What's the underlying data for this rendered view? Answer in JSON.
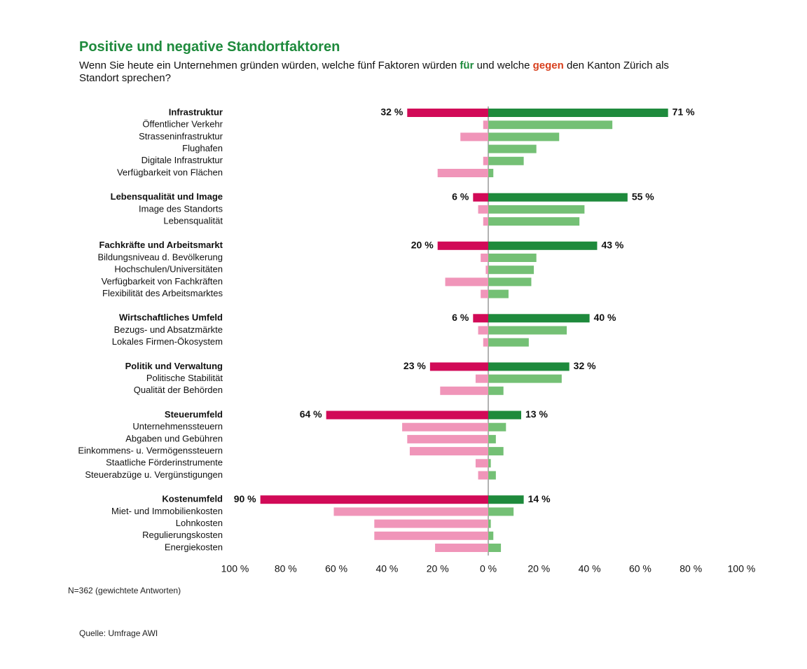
{
  "chart_data": {
    "type": "diverging_bar",
    "title": "Positive und negative Standortfaktoren",
    "subtitle": [
      "Wenn Sie heute ein Unternehmen gründen würden, welche fünf Faktoren würden ",
      "für",
      " und welche ",
      "gegen",
      " den Kanton Zürich als",
      "Standort sprechen?"
    ],
    "subtitle_colors": [
      "#111111",
      "#1e8a3c",
      "#111111",
      "#d8401e",
      "#111111",
      "#111111"
    ],
    "colors": {
      "against_group": "#d10a57",
      "against_item": "#f095b9",
      "for_group": "#1e8a3c",
      "for_item": "#74c075"
    },
    "xlim": [
      -100,
      100
    ],
    "xticks": [
      {
        "value": -100,
        "label": "100 %"
      },
      {
        "value": -80,
        "label": "80 %"
      },
      {
        "value": -60,
        "label": "60 %"
      },
      {
        "value": -40,
        "label": "40 %"
      },
      {
        "value": -20,
        "label": "20 %"
      },
      {
        "value": 0,
        "label": "0 %"
      },
      {
        "value": 20,
        "label": "20 %"
      },
      {
        "value": 40,
        "label": "40 %"
      },
      {
        "value": 60,
        "label": "60 %"
      },
      {
        "value": 80,
        "label": "80 %"
      },
      {
        "value": 100,
        "label": "100 %"
      }
    ],
    "groups": [
      {
        "label": "Infrastruktur",
        "against": 32,
        "for": 71,
        "against_label": "32 %",
        "for_label": "71 %",
        "items": [
          {
            "label": "Öffentlicher Verkehr",
            "against": 2,
            "for": 49
          },
          {
            "label": "Strasseninfrastruktur",
            "against": 11,
            "for": 28
          },
          {
            "label": "Flughafen",
            "against": 0,
            "for": 19
          },
          {
            "label": "Digitale Infrastruktur",
            "against": 2,
            "for": 14
          },
          {
            "label": "Verfügbarkeit von Flächen",
            "against": 20,
            "for": 2
          }
        ]
      },
      {
        "label": "Lebensqualität und Image",
        "against": 6,
        "for": 55,
        "against_label": "6 %",
        "for_label": "55 %",
        "items": [
          {
            "label": "Image des Standorts",
            "against": 4,
            "for": 38
          },
          {
            "label": "Lebensqualität",
            "against": 2,
            "for": 36
          }
        ]
      },
      {
        "label": "Fachkräfte und Arbeitsmarkt",
        "against": 20,
        "for": 43,
        "against_label": "20 %",
        "for_label": "43 %",
        "items": [
          {
            "label": "Bildungsniveau d. Bevölkerung",
            "against": 3,
            "for": 19
          },
          {
            "label": "Hochschulen/Universitäten",
            "against": 1,
            "for": 18
          },
          {
            "label": "Verfügbarkeit von Fachkräften",
            "against": 17,
            "for": 17
          },
          {
            "label": "Flexibilität des Arbeitsmarktes",
            "against": 3,
            "for": 8
          }
        ]
      },
      {
        "label": "Wirtschaftliches Umfeld",
        "against": 6,
        "for": 40,
        "against_label": "6 %",
        "for_label": "40 %",
        "items": [
          {
            "label": "Bezugs- und Absatzmärkte",
            "against": 4,
            "for": 31
          },
          {
            "label": "Lokales Firmen-Ökosystem",
            "against": 2,
            "for": 16
          }
        ]
      },
      {
        "label": "Politik und Verwaltung",
        "against": 23,
        "for": 32,
        "against_label": "23 %",
        "for_label": "32 %",
        "items": [
          {
            "label": "Politische Stabilität",
            "against": 5,
            "for": 29
          },
          {
            "label": "Qualität der Behörden",
            "against": 19,
            "for": 6
          }
        ]
      },
      {
        "label": "Steuerumfeld",
        "against": 64,
        "for": 13,
        "against_label": "64 %",
        "for_label": "13 %",
        "items": [
          {
            "label": "Unternehmenssteuern",
            "against": 34,
            "for": 7
          },
          {
            "label": "Abgaben und Gebühren",
            "against": 32,
            "for": 3
          },
          {
            "label": "Einkommens- u. Vermögenssteuern",
            "against": 31,
            "for": 6
          },
          {
            "label": "Staatliche Förderinstrumente",
            "against": 5,
            "for": 1
          },
          {
            "label": "Steuerabzüge u. Vergünstigungen",
            "against": 4,
            "for": 3
          }
        ]
      },
      {
        "label": "Kostenumfeld",
        "against": 90,
        "for": 14,
        "against_label": "90 %",
        "for_label": "14 %",
        "items": [
          {
            "label": "Miet- und Immobilienkosten",
            "against": 61,
            "for": 10
          },
          {
            "label": "Lohnkosten",
            "against": 45,
            "for": 1
          },
          {
            "label": "Regulierungskosten",
            "against": 45,
            "for": 2
          },
          {
            "label": "Energiekosten",
            "against": 21,
            "for": 5
          }
        ]
      }
    ],
    "note": "N=362 (gewichtete Antworten)",
    "source": "Quelle: Umfrage AWI"
  }
}
